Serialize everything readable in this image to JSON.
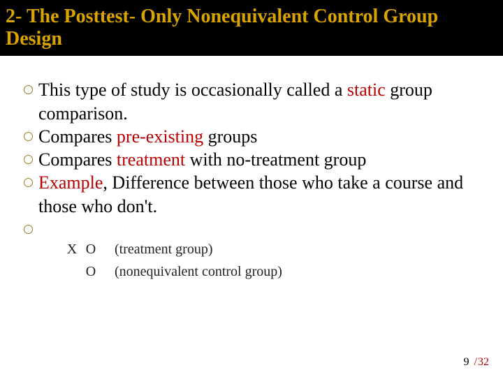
{
  "title": "2- The Posttest- Only Nonequivalent Control Group Design",
  "title_color": "#d9a400",
  "title_bg": "#000000",
  "title_fontsize": 28,
  "bullets": [
    {
      "pre": "This type of study is occasionally called a ",
      "hl": "static",
      "post": " group comparison."
    },
    {
      "pre": "Compares ",
      "hl": "pre-existing",
      "post": " groups"
    },
    {
      "pre": "Compares ",
      "hl": "treatment",
      "post": " with no-treatment group"
    },
    {
      "pre": "",
      "hl": "Example",
      "post": ", Difference between those who take a course and those who don't."
    }
  ],
  "bullet_fontsize": 26,
  "highlight_color": "#b80000",
  "bullet_marker_border": "#9c7a28",
  "diagram": {
    "rows": [
      {
        "col1": "X",
        "col2": "O",
        "label": "(treatment group)"
      },
      {
        "col1": "",
        "col2": "O",
        "label": "(nonequivalent control group)"
      }
    ],
    "fontsize": 20,
    "color": "#222222"
  },
  "page": {
    "current": "9",
    "sep": "/",
    "total": "32",
    "sep_color": "#b80000"
  },
  "background": "#ffffff"
}
